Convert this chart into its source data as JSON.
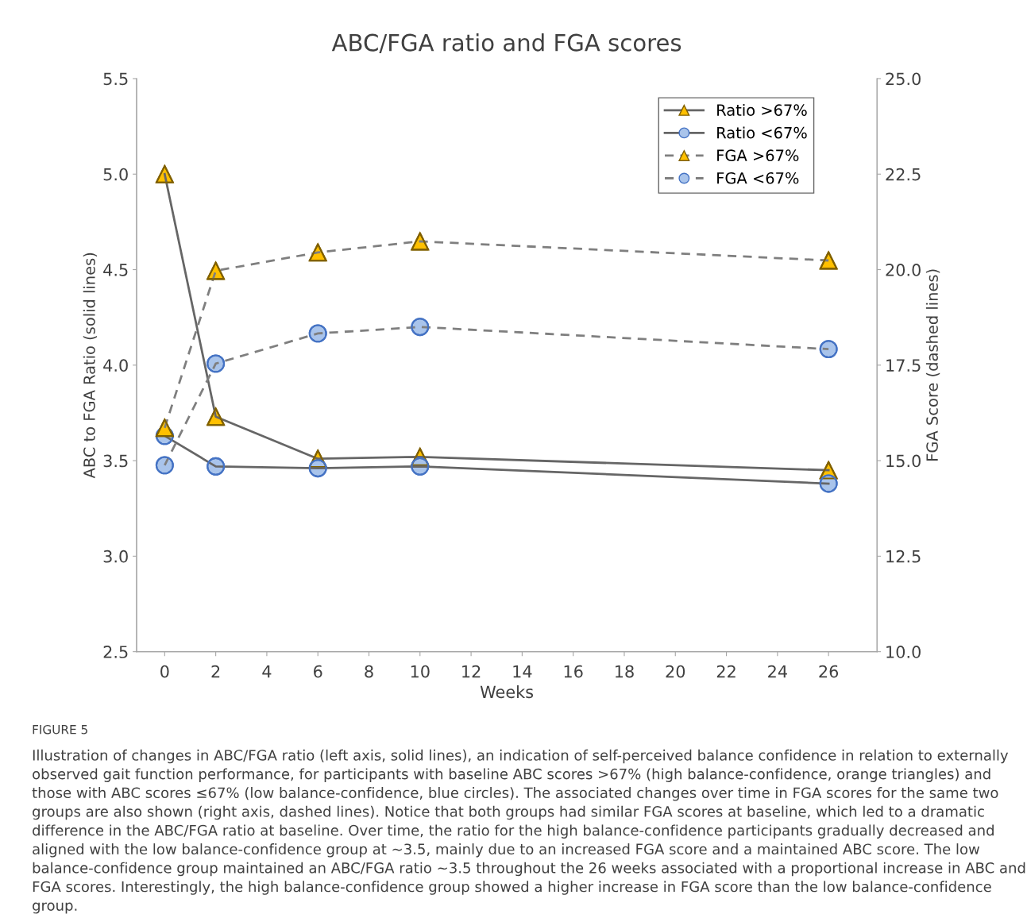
{
  "chart_data": {
    "type": "line",
    "title": "ABC/FGA ratio and FGA scores",
    "xlabel": "Weeks",
    "ylabel": "ABC to FGA Ratio (solid lines)",
    "y2label": "FGA Score (dashed lines)",
    "x": [
      0,
      2,
      6,
      10,
      26
    ],
    "series": [
      {
        "name": "Ratio >67%",
        "color": "#666666",
        "colors": [
          "#ffc000",
          "#ffc000",
          "#ffc000",
          "#ffc000",
          "#ffc000"
        ],
        "marker": "triangle",
        "line_style": "solid",
        "values": [
          5.0,
          3.73,
          3.51,
          3.52,
          3.45
        ]
      },
      {
        "name": "Ratio <67%",
        "color": "#666666",
        "colors": [
          "#a9c4eb",
          "#a9c4eb",
          "#a9c4eb",
          "#a9c4eb",
          "#a9c4eb"
        ],
        "marker": "circle",
        "line_style": "solid",
        "values": [
          3.63,
          3.47,
          3.46,
          3.47,
          3.38
        ]
      },
      {
        "name": "FGA >67%",
        "color": "#7f7f7f",
        "colors": [
          "#ffc000",
          "#ffc000",
          "#ffc000",
          "#ffc000",
          "#ffc000"
        ],
        "marker": "triangle",
        "line_style": "dashed",
        "axis": "y2",
        "values": [
          15.86,
          19.97,
          20.45,
          20.74,
          20.24
        ]
      },
      {
        "name": "FGA <67%",
        "color": "#7f7f7f",
        "colors": [
          "#a9c4eb",
          "#a9c4eb",
          "#a9c4eb",
          "#a9c4eb",
          "#a9c4eb"
        ],
        "marker": "circle",
        "line_style": "dashed",
        "axis": "y2",
        "values": [
          14.88,
          17.54,
          18.33,
          18.5,
          17.92
        ]
      }
    ],
    "xlim": [
      -1.1,
      27.9
    ],
    "xticks": [
      0,
      2,
      4,
      6,
      8,
      10,
      12,
      14,
      16,
      18,
      20,
      22,
      24,
      26
    ],
    "ylim": [
      2.5,
      5.5
    ],
    "yticks": [
      {
        "value": 2.5,
        "label": "2.5"
      },
      {
        "value": 3.0,
        "label": "3.0"
      },
      {
        "value": 3.5,
        "label": "3.5"
      },
      {
        "value": 4.0,
        "label": "4.0"
      },
      {
        "value": 4.5,
        "label": "4.5"
      },
      {
        "value": 5.0,
        "label": "5.0"
      },
      {
        "value": 5.5,
        "label": "5.5"
      }
    ],
    "y2lim": [
      10,
      25
    ],
    "y2ticks": [
      {
        "value": 10,
        "label": "10.0"
      },
      {
        "value": 12.5,
        "label": "12.5"
      },
      {
        "value": 15,
        "label": "15.0"
      },
      {
        "value": 17.5,
        "label": "17.5"
      },
      {
        "value": 20,
        "label": "20.0"
      },
      {
        "value": 22.5,
        "label": "22.5"
      },
      {
        "value": 25,
        "label": "25.0"
      }
    ],
    "grid": false,
    "legend": "top right",
    "annotations": [
      "FIGURE 5",
      "Illustration of changes in ABC/FGA ratio (left axis, solid lines), an indication of self-perceived balance confidence in relation to externally observed gait function performance, for participants with baseline ABC scores >67% (high balance-confidence, orange triangles) and those with ABC scores ≤67% (low balance-confidence, blue circles). The associated changes over time in FGA scores for the same two groups are also shown (right axis, dashed lines). Notice that both groups had similar FGA scores at baseline, which led to a dramatic difference in the ABC/FGA ratio at baseline. Over time, the ratio for the high balance-confidence participants gradually decreased and aligned with the low balance-confidence group at ∼3.5, mainly due to an increased FGA score and a maintained ABC score. The low balance-confidence group maintained an ABC/FGA ratio ∼3.5 throughout the 26 weeks associated with a proportional increase in ABC and FGA scores. Interestingly, the high balance-confidence group showed a higher increase in FGA score than the low balance-confidence group."
    ]
  }
}
